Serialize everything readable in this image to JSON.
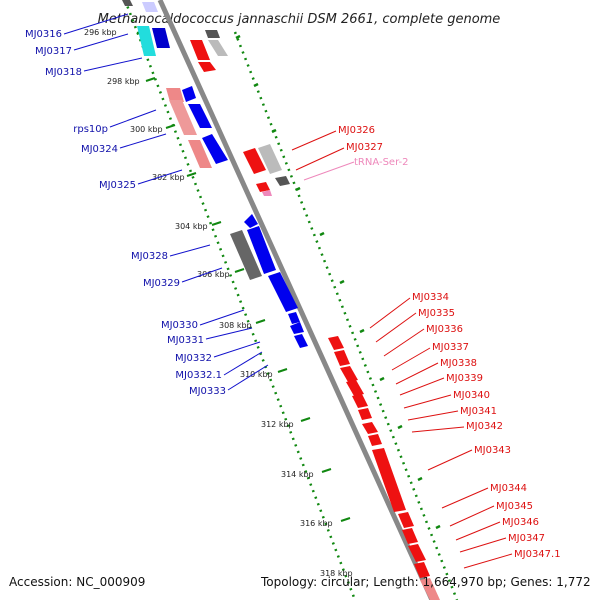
{
  "title": "Methanocaldococcus jannaschii DSM 2661, complete genome",
  "footer": {
    "accession": "Accession: NC_000909",
    "summary": "Topology: circular; Length: 1,664,970 bp; Genes: 1,772"
  },
  "colors": {
    "forward": "#ee1111",
    "reverse": "#1111dd",
    "backbone": "#888888",
    "ruler": "#118811",
    "trna": "#ee88bb"
  },
  "scale_labels": [
    "296 kbp",
    "298 kbp",
    "300 kbp",
    "302 kbp",
    "304 kbp",
    "306 kbp",
    "308 kbp",
    "310 kbp",
    "312 kbp",
    "314 kbp",
    "316 kbp",
    "318 kbp"
  ],
  "left_genes": [
    "MJ0316",
    "MJ0317",
    "MJ0318",
    "rps10p",
    "MJ0324",
    "MJ0325",
    "MJ0328",
    "MJ0329",
    "MJ0330",
    "MJ0331",
    "MJ0332",
    "MJ0332.1",
    "MJ0333"
  ],
  "right_genes": [
    "MJ0326",
    "MJ0327",
    "tRNA-Ser-2",
    "MJ0334",
    "MJ0335",
    "MJ0336",
    "MJ0337",
    "MJ0338",
    "MJ0339",
    "MJ0340",
    "MJ0341",
    "MJ0342",
    "MJ0343",
    "MJ0344",
    "MJ0345",
    "MJ0346",
    "MJ0347",
    "MJ0347.1"
  ]
}
